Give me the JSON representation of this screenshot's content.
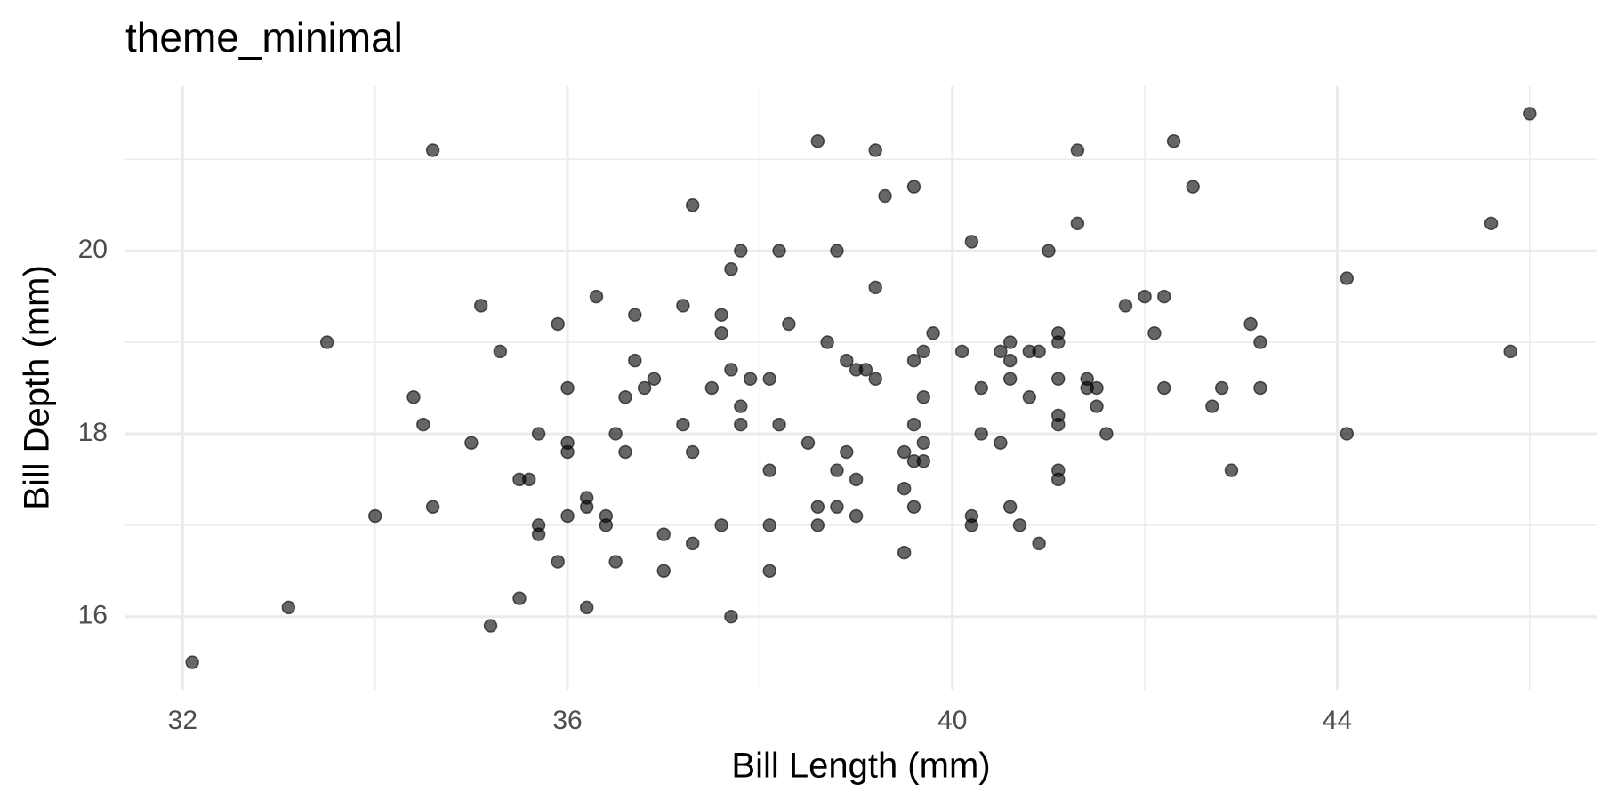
{
  "chart_data": {
    "type": "scatter",
    "title": "theme_minimal",
    "x_label": "Bill Length (mm)",
    "y_label": "Bill Depth (mm)",
    "xlim": [
      31.405,
      46.695
    ],
    "ylim": [
      15.2,
      21.8
    ],
    "xticks": [
      32,
      36,
      40,
      44
    ],
    "yticks": [
      16,
      18,
      20
    ],
    "x_minor_grid": [
      34,
      38,
      42,
      46
    ],
    "y_minor_grid": [
      17,
      19,
      21
    ],
    "grid": true,
    "color": "#000000",
    "opacity": 0.6,
    "x": [
      32.1,
      33.1,
      33.5,
      34.0,
      34.4,
      34.5,
      34.6,
      34.6,
      35.0,
      35.1,
      35.2,
      35.3,
      35.5,
      35.5,
      35.6,
      35.7,
      35.7,
      35.7,
      35.9,
      35.9,
      36.0,
      36.0,
      36.0,
      36.0,
      36.2,
      36.2,
      36.2,
      36.3,
      36.4,
      36.4,
      36.5,
      36.5,
      36.6,
      36.6,
      36.7,
      36.7,
      36.8,
      36.9,
      37.0,
      37.0,
      37.2,
      37.2,
      37.3,
      37.3,
      37.3,
      37.5,
      37.6,
      37.6,
      37.6,
      37.7,
      37.7,
      37.7,
      37.8,
      37.8,
      37.8,
      37.9,
      38.1,
      38.1,
      38.1,
      38.1,
      38.2,
      38.2,
      38.3,
      38.5,
      38.6,
      38.6,
      38.6,
      38.7,
      38.8,
      38.8,
      38.8,
      38.9,
      38.9,
      39.0,
      39.0,
      39.0,
      39.1,
      39.2,
      39.2,
      39.2,
      39.3,
      39.5,
      39.5,
      39.5,
      39.6,
      39.6,
      39.6,
      39.6,
      39.6,
      39.7,
      39.7,
      39.7,
      39.7,
      39.8,
      40.1,
      40.2,
      40.2,
      40.2,
      40.3,
      40.3,
      40.5,
      40.5,
      40.6,
      40.6,
      40.6,
      40.6,
      40.7,
      40.8,
      40.8,
      40.9,
      40.9,
      41.0,
      41.1,
      41.1,
      41.1,
      41.1,
      41.1,
      41.1,
      41.1,
      41.3,
      41.3,
      41.4,
      41.4,
      41.5,
      41.5,
      41.6,
      41.8,
      42.0,
      42.1,
      42.2,
      42.2,
      42.3,
      42.5,
      42.7,
      42.8,
      42.9,
      43.1,
      43.2,
      43.2,
      44.1,
      44.1,
      45.6,
      45.8,
      46.0
    ],
    "values": [
      15.5,
      16.1,
      19.0,
      17.1,
      18.4,
      18.1,
      21.1,
      17.2,
      17.9,
      19.4,
      15.9,
      18.9,
      17.5,
      16.2,
      17.5,
      18.0,
      17.0,
      16.9,
      19.2,
      16.6,
      18.5,
      17.9,
      17.8,
      17.1,
      17.3,
      17.2,
      16.1,
      19.5,
      17.1,
      17.0,
      18.0,
      16.6,
      18.4,
      17.8,
      19.3,
      18.8,
      18.5,
      18.6,
      16.9,
      16.5,
      19.4,
      18.1,
      20.5,
      17.8,
      16.8,
      18.5,
      19.3,
      19.1,
      17.0,
      19.8,
      18.7,
      16.0,
      20.0,
      18.3,
      18.1,
      18.6,
      18.6,
      17.6,
      17.0,
      16.5,
      20.0,
      18.1,
      19.2,
      17.9,
      21.2,
      17.2,
      17.0,
      19.0,
      20.0,
      17.6,
      17.2,
      18.8,
      17.8,
      18.7,
      17.5,
      17.1,
      18.7,
      21.1,
      19.6,
      18.6,
      20.6,
      17.8,
      17.4,
      16.7,
      20.7,
      18.8,
      18.1,
      17.7,
      17.2,
      18.9,
      18.4,
      17.9,
      17.7,
      19.1,
      18.9,
      20.1,
      17.1,
      17.0,
      18.5,
      18.0,
      18.9,
      17.9,
      19.0,
      18.8,
      18.6,
      17.2,
      17.0,
      18.9,
      18.4,
      18.9,
      16.8,
      20.0,
      19.1,
      19.0,
      18.6,
      18.2,
      18.1,
      17.6,
      17.5,
      21.1,
      20.3,
      18.6,
      18.5,
      18.5,
      18.3,
      18.0,
      19.4,
      19.5,
      19.1,
      19.5,
      18.5,
      21.2,
      20.7,
      18.3,
      18.5,
      17.6,
      19.2,
      19.0,
      18.5,
      19.7,
      18.0,
      20.3,
      18.9,
      21.5
    ]
  }
}
